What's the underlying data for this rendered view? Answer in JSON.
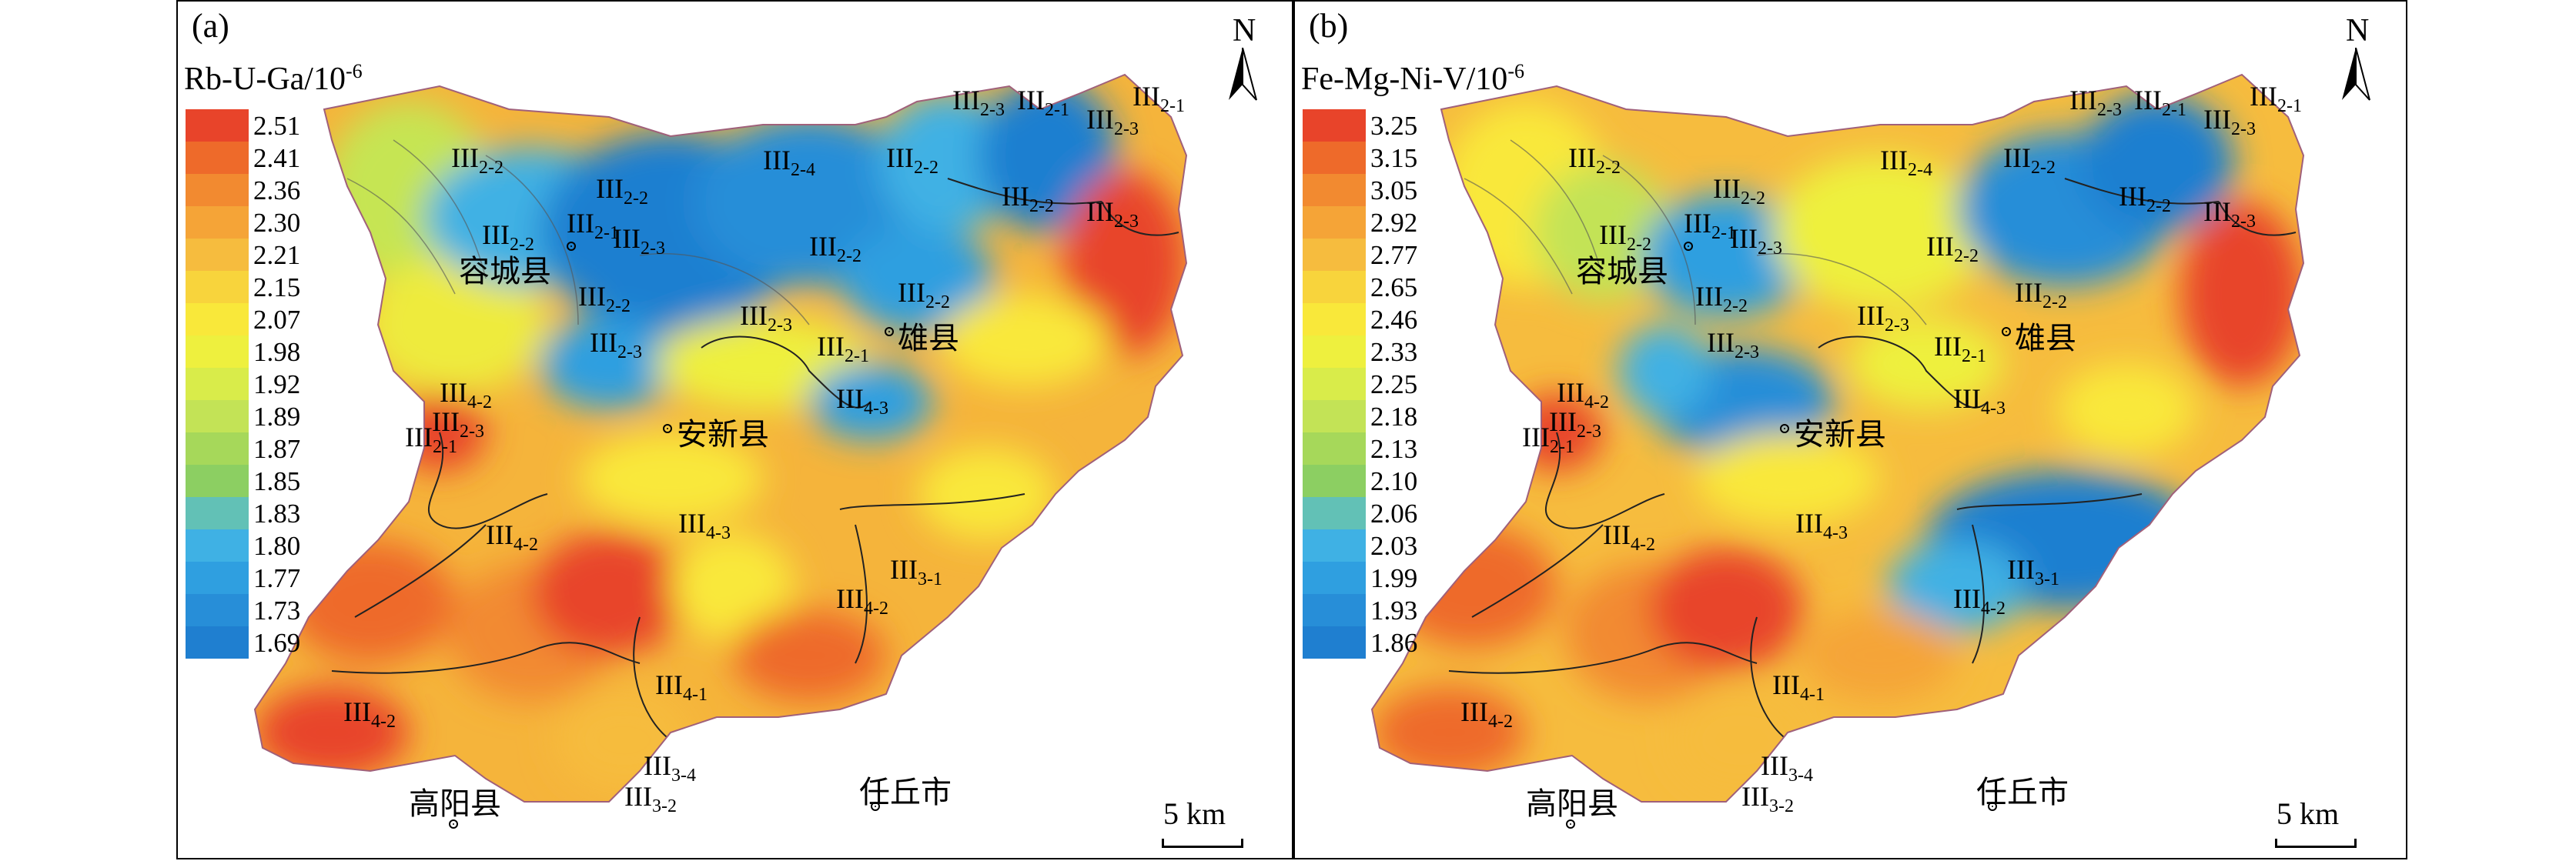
{
  "panels": [
    {
      "label": "(a)",
      "legend_title": "Rb-U-Ga/10",
      "legend_exp": "-6",
      "legend_values": [
        "2.51",
        "2.41",
        "2.36",
        "2.30",
        "2.21",
        "2.15",
        "2.07",
        "1.98",
        "1.92",
        "1.89",
        "1.87",
        "1.85",
        "1.83",
        "1.80",
        "1.77",
        "1.73",
        "1.69"
      ],
      "north": "N",
      "scale": "5 km",
      "towns": [
        "容城县",
        "雄县",
        "安新县",
        "高阳县",
        "任丘市"
      ]
    },
    {
      "label": "(b)",
      "legend_title": "Fe-Mg-Ni-V/10",
      "legend_exp": "-6",
      "legend_values": [
        "3.25",
        "3.15",
        "3.05",
        "2.92",
        "2.77",
        "2.65",
        "2.46",
        "2.33",
        "2.25",
        "2.18",
        "2.13",
        "2.10",
        "2.06",
        "2.03",
        "1.99",
        "1.93",
        "1.86"
      ],
      "north": "N",
      "scale": "5 km",
      "towns": [
        "容城县",
        "雄县",
        "安新县",
        "高阳县",
        "任丘市"
      ]
    }
  ],
  "legend_colors": [
    "#e8442a",
    "#ee6a2a",
    "#f28a30",
    "#f5a437",
    "#f6bc3e",
    "#f8d43c",
    "#f9e83a",
    "#eef03e",
    "#d9ec4a",
    "#c3e356",
    "#a6d85a",
    "#8ccf62",
    "#62c1b6",
    "#3fb1e4",
    "#2f9fe0",
    "#278ed8",
    "#1f7fd0"
  ],
  "zones": {
    "iii": "III",
    "s22": "2-2",
    "s21": "2-1",
    "s23": "2-3",
    "s24": "2-4",
    "s31": "3-1",
    "s32": "3-2",
    "s34": "3-4",
    "s41": "4-1",
    "s42": "4-2",
    "s43": "4-3"
  }
}
